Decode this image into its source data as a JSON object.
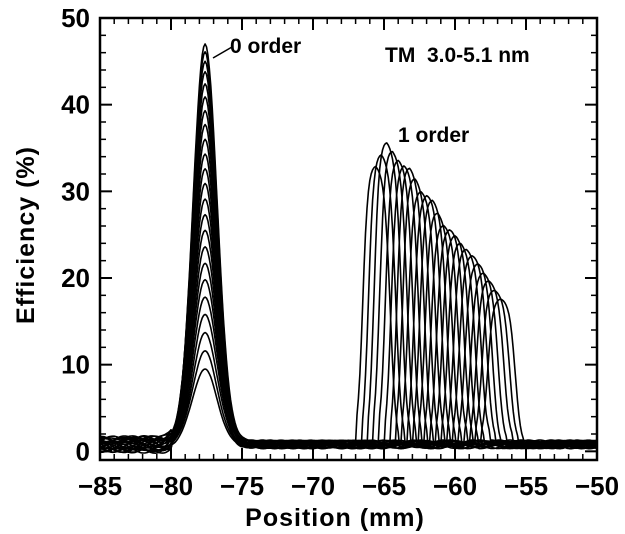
{
  "chart_data": {
    "type": "line",
    "title": "",
    "xlabel": "Position (mm)",
    "ylabel": "Efficiency (%)",
    "xlim": [
      -85,
      -50
    ],
    "ylim": [
      -1,
      50
    ],
    "x_ticks": [
      -85,
      -80,
      -75,
      -70,
      -65,
      -60,
      -55,
      -50
    ],
    "x_tick_labels": [
      "−85",
      "−80",
      "−75",
      "−70",
      "−65",
      "−60",
      "−55",
      "−50"
    ],
    "y_ticks": [
      0,
      10,
      20,
      30,
      40,
      50
    ],
    "y_tick_labels": [
      "0",
      "10",
      "20",
      "30",
      "40",
      "50"
    ],
    "grid": false,
    "annotations": [
      "TM  3.0-5.1 nm",
      "0 order",
      "1 order"
    ],
    "series": [
      {
        "zero_order_peak": 9.5,
        "first_order_center": -65.6,
        "first_order_peak": 32.5
      },
      {
        "zero_order_peak": 11.6,
        "first_order_center": -65.2,
        "first_order_peak": 33.8
      },
      {
        "zero_order_peak": 13.7,
        "first_order_center": -64.8,
        "first_order_peak": 35.0
      },
      {
        "zero_order_peak": 15.8,
        "first_order_center": -64.4,
        "first_order_peak": 34.2
      },
      {
        "zero_order_peak": 17.8,
        "first_order_center": -64.0,
        "first_order_peak": 33.5
      },
      {
        "zero_order_peak": 19.8,
        "first_order_center": -63.6,
        "first_order_peak": 32.5
      },
      {
        "zero_order_peak": 21.7,
        "first_order_center": -63.2,
        "first_order_peak": 31.8
      },
      {
        "zero_order_peak": 23.6,
        "first_order_center": -62.8,
        "first_order_peak": 31.0
      },
      {
        "zero_order_peak": 25.5,
        "first_order_center": -62.4,
        "first_order_peak": 30.0
      },
      {
        "zero_order_peak": 27.3,
        "first_order_center": -62.0,
        "first_order_peak": 29.0
      },
      {
        "zero_order_peak": 29.1,
        "first_order_center": -61.6,
        "first_order_peak": 28.0
      },
      {
        "zero_order_peak": 30.9,
        "first_order_center": -61.2,
        "first_order_peak": 27.0
      },
      {
        "zero_order_peak": 32.6,
        "first_order_center": -60.8,
        "first_order_peak": 26.0
      },
      {
        "zero_order_peak": 34.3,
        "first_order_center": -60.4,
        "first_order_peak": 25.0
      },
      {
        "zero_order_peak": 36.0,
        "first_order_center": -60.0,
        "first_order_peak": 24.0
      },
      {
        "zero_order_peak": 37.7,
        "first_order_center": -59.6,
        "first_order_peak": 23.5
      },
      {
        "zero_order_peak": 39.3,
        "first_order_center": -59.2,
        "first_order_peak": 23.0
      },
      {
        "zero_order_peak": 40.9,
        "first_order_center": -58.8,
        "first_order_peak": 22.0
      },
      {
        "zero_order_peak": 42.4,
        "first_order_center": -58.4,
        "first_order_peak": 21.0
      },
      {
        "zero_order_peak": 43.8,
        "first_order_center": -58.0,
        "first_order_peak": 20.0
      },
      {
        "zero_order_peak": 45.0,
        "first_order_center": -57.6,
        "first_order_peak": 19.0
      },
      {
        "zero_order_peak": 46.1,
        "first_order_center": -57.2,
        "first_order_peak": 18.0
      },
      {
        "zero_order_peak": 47.0,
        "first_order_center": -56.8,
        "first_order_peak": 17.2
      }
    ]
  }
}
